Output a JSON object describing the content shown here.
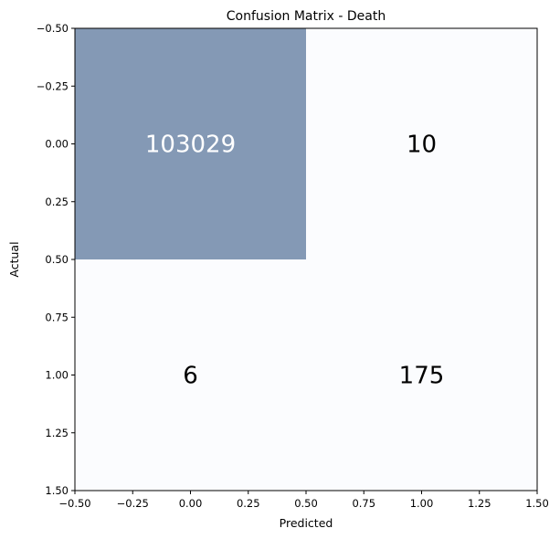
{
  "chart_data": {
    "type": "heatmap",
    "title": "Confusion Matrix - Death",
    "xlabel": "Predicted",
    "ylabel": "Actual",
    "xlim": [
      -0.5,
      1.5
    ],
    "ylim": [
      1.5,
      -0.5
    ],
    "xticks": [
      "−0.50",
      "−0.25",
      "0.00",
      "0.25",
      "0.50",
      "0.75",
      "1.00",
      "1.25",
      "1.50"
    ],
    "yticks": [
      "−0.50",
      "−0.25",
      "0.00",
      "0.25",
      "0.50",
      "0.75",
      "1.00",
      "1.25",
      "1.50"
    ],
    "x": [
      0,
      1
    ],
    "y": [
      0,
      1
    ],
    "matrix": [
      [
        103029,
        10
      ],
      [
        6,
        175
      ]
    ],
    "cell_labels": [
      [
        "103029",
        "10"
      ],
      [
        "6",
        "175"
      ]
    ],
    "colors": {
      "high": "#8499b5",
      "low": "#fbfcfe",
      "text_on_high": "#ffffff",
      "text_on_low": "#000000"
    },
    "grid": false
  }
}
